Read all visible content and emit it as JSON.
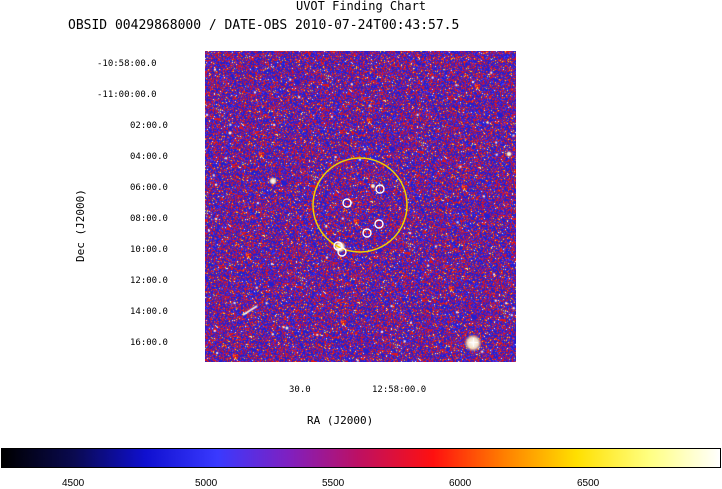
{
  "header": {
    "title": "UVOT Finding Chart",
    "subtitle": "OBSID 00429868000 / DATE-OBS 2010-07-24T00:43:57.5"
  },
  "axes": {
    "xlabel": "RA (J2000)",
    "ylabel": "Dec (J2000)",
    "y_ticks": [
      "-10:58:00.0",
      "-11:00:00.0",
      "02:00.0",
      "04:00.0",
      "06:00.0",
      "08:00.0",
      "10:00.0",
      "12:00.0",
      "14:00.0",
      "16:00.0"
    ],
    "x_ticks": [
      "30.0",
      "12:58:00.0"
    ]
  },
  "colorbar": {
    "ticks": [
      "4500",
      "5000",
      "5500",
      "6000",
      "6500"
    ],
    "stops": [
      "#000000",
      "#0a0a50",
      "#1010d0",
      "#3a3aff",
      "#8020c0",
      "#c01060",
      "#ff1010",
      "#ff8000",
      "#ffe000",
      "#ffff80",
      "#ffffff"
    ]
  },
  "image": {
    "colors": {
      "background_blue": "#2020d0",
      "background_red": "#e01818",
      "circle_large": "#f0d000",
      "circle_small": "#ffffff"
    }
  }
}
